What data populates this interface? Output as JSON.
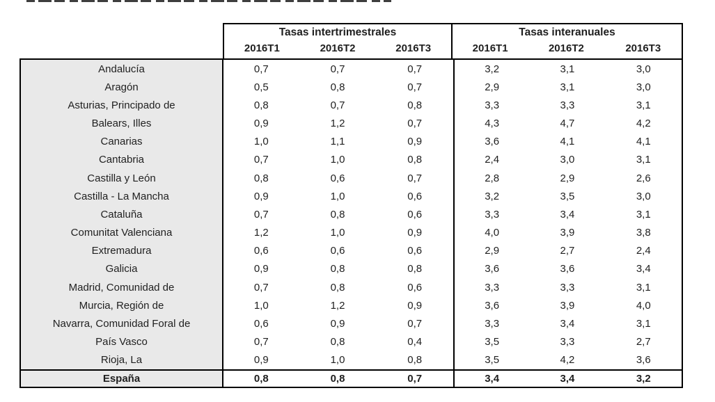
{
  "table": {
    "group_headers": [
      "Tasas intertrimestrales",
      "Tasas interanuales"
    ],
    "quarter_headers": [
      "2016T1",
      "2016T2",
      "2016T3",
      "2016T1",
      "2016T2",
      "2016T3"
    ],
    "rows": [
      {
        "region": "Andalucía",
        "values": [
          "0,7",
          "0,7",
          "0,7",
          "3,2",
          "3,1",
          "3,0"
        ]
      },
      {
        "region": "Aragón",
        "values": [
          "0,5",
          "0,8",
          "0,7",
          "2,9",
          "3,1",
          "3,0"
        ]
      },
      {
        "region": "Asturias, Principado de",
        "values": [
          "0,8",
          "0,7",
          "0,8",
          "3,3",
          "3,3",
          "3,1"
        ]
      },
      {
        "region": "Balears, Illes",
        "values": [
          "0,9",
          "1,2",
          "0,7",
          "4,3",
          "4,7",
          "4,2"
        ]
      },
      {
        "region": "Canarias",
        "values": [
          "1,0",
          "1,1",
          "0,9",
          "3,6",
          "4,1",
          "4,1"
        ]
      },
      {
        "region": "Cantabria",
        "values": [
          "0,7",
          "1,0",
          "0,8",
          "2,4",
          "3,0",
          "3,1"
        ]
      },
      {
        "region": "Castilla y León",
        "values": [
          "0,8",
          "0,6",
          "0,7",
          "2,8",
          "2,9",
          "2,6"
        ]
      },
      {
        "region": "Castilla - La Mancha",
        "values": [
          "0,9",
          "1,0",
          "0,6",
          "3,2",
          "3,5",
          "3,0"
        ]
      },
      {
        "region": "Cataluña",
        "values": [
          "0,7",
          "0,8",
          "0,6",
          "3,3",
          "3,4",
          "3,1"
        ]
      },
      {
        "region": "Comunitat Valenciana",
        "values": [
          "1,2",
          "1,0",
          "0,9",
          "4,0",
          "3,9",
          "3,8"
        ]
      },
      {
        "region": "Extremadura",
        "values": [
          "0,6",
          "0,6",
          "0,6",
          "2,9",
          "2,7",
          "2,4"
        ]
      },
      {
        "region": "Galicia",
        "values": [
          "0,9",
          "0,8",
          "0,8",
          "3,6",
          "3,6",
          "3,4"
        ]
      },
      {
        "region": "Madrid, Comunidad de",
        "values": [
          "0,7",
          "0,8",
          "0,6",
          "3,3",
          "3,3",
          "3,1"
        ]
      },
      {
        "region": "Murcia, Región de",
        "values": [
          "1,0",
          "1,2",
          "0,9",
          "3,6",
          "3,9",
          "4,0"
        ]
      },
      {
        "region": "Navarra, Comunidad Foral de",
        "values": [
          "0,6",
          "0,9",
          "0,7",
          "3,3",
          "3,4",
          "3,1"
        ]
      },
      {
        "region": "País Vasco",
        "values": [
          "0,7",
          "0,8",
          "0,4",
          "3,5",
          "3,3",
          "2,7"
        ]
      },
      {
        "region": "Rioja, La",
        "values": [
          "0,9",
          "1,0",
          "0,8",
          "3,5",
          "4,2",
          "3,6"
        ]
      }
    ],
    "total_row": {
      "region": "España",
      "values": [
        "0,8",
        "0,8",
        "0,7",
        "3,4",
        "3,4",
        "3,2"
      ]
    }
  },
  "colors": {
    "region_column_bg": "#e9e9e9",
    "border": "#000000",
    "text": "#1f1f1f",
    "background": "#ffffff"
  }
}
